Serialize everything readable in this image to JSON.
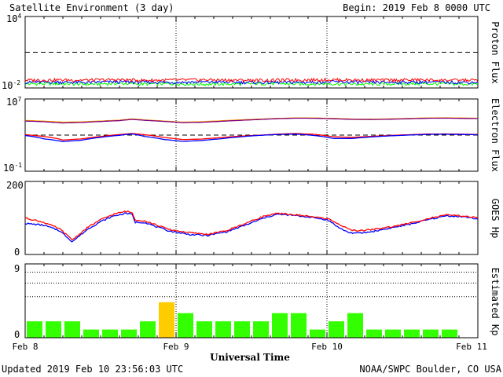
{
  "header": {
    "title": "Satellite Environment (3 day)",
    "begin": "Begin:  2019 Feb 8 0000 UTC"
  },
  "footer": {
    "updated": "Updated 2019 Feb 10 23:56:03 UTC",
    "credit": "NOAA/SWPC Boulder, CO USA",
    "xaxis_title": "Universal Time"
  },
  "colors": {
    "red": "#ff0000",
    "blue": "#0000ff",
    "green": "#00ff00",
    "orange": "#ffa500",
    "purple": "#800080",
    "kp_normal": "#33ff00",
    "kp_active": "#ffcc00",
    "frame": "#000000"
  },
  "chart_data": [
    {
      "id": "proton",
      "type": "line",
      "ylabel": "Proton Flux",
      "ytick_labels": [
        {
          "base": "10",
          "exp": "4"
        },
        {
          "base": "10",
          "exp": "-2"
        }
      ],
      "scale": "log",
      "ylim": [
        0.01,
        10000
      ],
      "threshold": 10,
      "x_range_hours": [
        0,
        72
      ],
      "series": [
        {
          "color": "red",
          "y": [
            0.045,
            0.048,
            0.046,
            0.05,
            0.044,
            0.047,
            0.049,
            0.046,
            0.045,
            0.048,
            0.05,
            0.047,
            0.046,
            0.049,
            0.045,
            0.047
          ]
        },
        {
          "color": "blue",
          "y": [
            0.03,
            0.032,
            0.029,
            0.033,
            0.031,
            0.03,
            0.032,
            0.031,
            0.029,
            0.03,
            0.033,
            0.031,
            0.03,
            0.032,
            0.031,
            0.03
          ]
        },
        {
          "color": "green",
          "y": [
            0.022,
            0.023,
            0.021,
            0.024,
            0.022,
            0.023,
            0.021,
            0.022,
            0.024,
            0.022,
            0.023,
            0.021,
            0.022,
            0.023,
            0.022,
            0.021
          ]
        }
      ]
    },
    {
      "id": "electron",
      "type": "line",
      "ylabel": "Electron Flux",
      "ytick_labels": [
        {
          "base": "10",
          "exp": "7"
        },
        {
          "base": "10",
          "exp": "-1"
        }
      ],
      "scale": "log",
      "ylim": [
        0.1,
        10000000
      ],
      "threshold": 1000,
      "x_hours": [
        0,
        3,
        6,
        9,
        12,
        15,
        17,
        19,
        22,
        25,
        28,
        31,
        34,
        37,
        40,
        43,
        46,
        49,
        52,
        55,
        58,
        61,
        64,
        67,
        70,
        72
      ],
      "series": [
        {
          "color": "orange",
          "y": [
            42000,
            35000,
            27000,
            29000,
            36000,
            45000,
            62000,
            48000,
            36000,
            27000,
            30000,
            38000,
            48000,
            58000,
            70000,
            80000,
            79000,
            70000,
            60000,
            58000,
            62000,
            70000,
            80000,
            82000,
            77000,
            74000
          ]
        },
        {
          "color": "purple",
          "y": [
            36000,
            30000,
            22000,
            25000,
            32000,
            40000,
            55000,
            43000,
            33000,
            24000,
            26000,
            33000,
            42000,
            52000,
            65000,
            74000,
            73000,
            64000,
            55000,
            53000,
            57000,
            64000,
            73000,
            75000,
            70000,
            68000
          ]
        },
        {
          "color": "red",
          "y": [
            1100,
            700,
            280,
            380,
            700,
            1150,
            1500,
            1100,
            550,
            320,
            360,
            520,
            750,
            950,
            1250,
            1500,
            1200,
            650,
            560,
            720,
            900,
            1100,
            1300,
            1350,
            1250,
            1200
          ]
        },
        {
          "color": "blue",
          "y": [
            900,
            380,
            190,
            270,
            560,
            950,
            1350,
            700,
            330,
            200,
            250,
            380,
            620,
            900,
            1150,
            1300,
            900,
            420,
            420,
            620,
            820,
            1000,
            1200,
            1250,
            1150,
            1100
          ]
        }
      ]
    },
    {
      "id": "hp",
      "type": "line",
      "ylabel": "GOES Hp",
      "ytick_labels": [
        "200",
        "0"
      ],
      "ylim": [
        0,
        200
      ],
      "x_hours": [
        0,
        3,
        5.5,
        7.5,
        10,
        12,
        14,
        16,
        17,
        17.5,
        19,
        21,
        23,
        26,
        29,
        32,
        35,
        38,
        40,
        42,
        45,
        48,
        49,
        50,
        51.5,
        53,
        55,
        58,
        61,
        64,
        67,
        70,
        72
      ],
      "series": [
        {
          "color": "red",
          "y": [
            100,
            88,
            70,
            40,
            75,
            95,
            110,
            118,
            115,
            95,
            92,
            80,
            68,
            60,
            55,
            65,
            85,
            105,
            112,
            110,
            105,
            98,
            92,
            82,
            68,
            65,
            68,
            75,
            85,
            98,
            108,
            105,
            100
          ]
        },
        {
          "color": "blue",
          "y": [
            85,
            80,
            65,
            35,
            70,
            90,
            105,
            113,
            110,
            88,
            88,
            75,
            64,
            55,
            52,
            62,
            80,
            100,
            110,
            108,
            103,
            95,
            85,
            72,
            60,
            58,
            62,
            72,
            82,
            95,
            106,
            103,
            97
          ]
        }
      ]
    },
    {
      "id": "kp",
      "type": "bar",
      "ylabel": "Estimated Kp",
      "ytick_labels": [
        "9",
        "0"
      ],
      "ylim": [
        0,
        9
      ],
      "active_threshold": 4,
      "values": [
        2,
        2,
        2,
        1,
        1,
        1,
        2,
        4.33,
        3,
        2,
        2,
        2,
        2,
        3,
        3,
        1,
        2,
        3,
        1,
        1,
        1,
        1,
        1,
        0
      ]
    }
  ],
  "xaxis": {
    "tick_labels": [
      "Feb 8",
      "Feb 9",
      "Feb 10",
      "Feb 11"
    ]
  }
}
